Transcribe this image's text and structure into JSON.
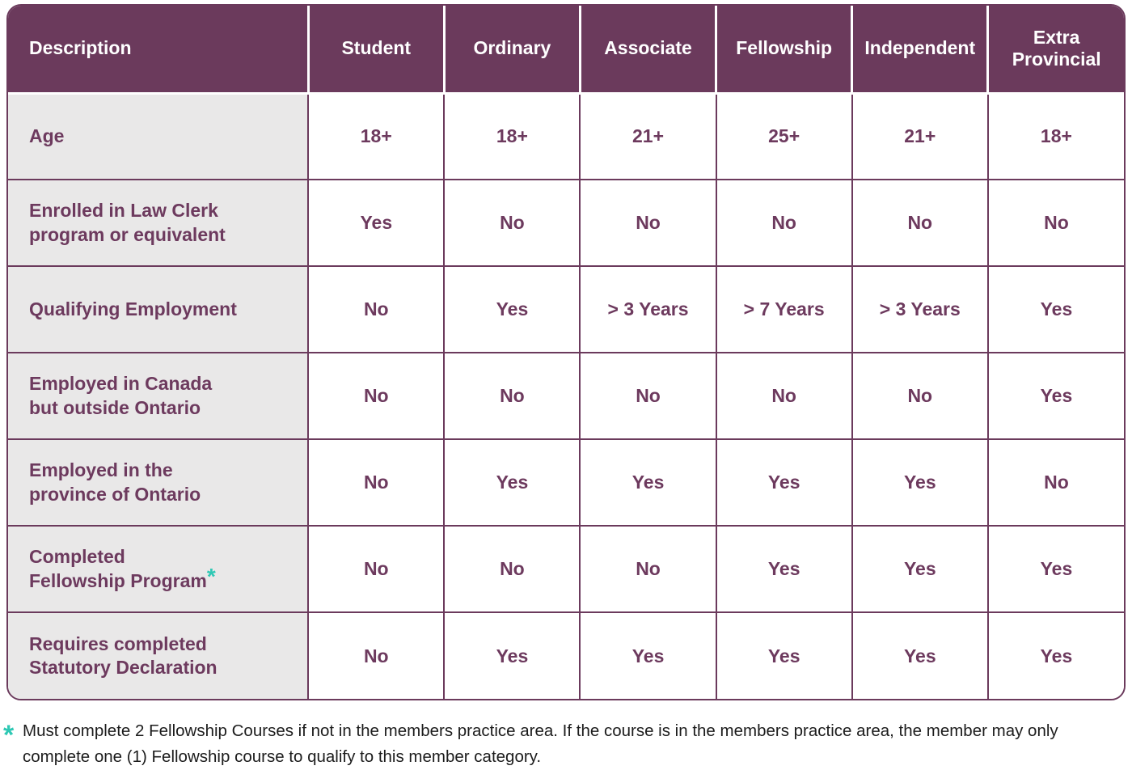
{
  "table": {
    "columns": [
      "Description",
      "Student",
      "Ordinary",
      "Associate",
      "Fellowship",
      "Independent",
      "Extra Provincial"
    ],
    "rows": [
      {
        "label": [
          "Age"
        ],
        "values": [
          "18+",
          "18+",
          "21+",
          "25+",
          "21+",
          "18+"
        ]
      },
      {
        "label": [
          "Enrolled in Law Clerk",
          "program or equivalent"
        ],
        "values": [
          "Yes",
          "No",
          "No",
          "No",
          "No",
          "No"
        ]
      },
      {
        "label": [
          "Qualifying Employment"
        ],
        "values": [
          "No",
          "Yes",
          "> 3 Years",
          "> 7 Years",
          "> 3 Years",
          "Yes"
        ]
      },
      {
        "label": [
          "Employed in Canada",
          "but outside Ontario"
        ],
        "values": [
          "No",
          "No",
          "No",
          "No",
          "No",
          "Yes"
        ]
      },
      {
        "label": [
          "Employed in the",
          "province of Ontario"
        ],
        "values": [
          "No",
          "Yes",
          "Yes",
          "Yes",
          "Yes",
          "No"
        ]
      },
      {
        "label": [
          "Completed",
          "Fellowship Program"
        ],
        "asterisk_marker": "*",
        "values": [
          "No",
          "No",
          "No",
          "Yes",
          "Yes",
          "Yes"
        ]
      },
      {
        "label": [
          "Requires completed",
          "Statutory Declaration"
        ],
        "values": [
          "No",
          "Yes",
          "Yes",
          "Yes",
          "Yes",
          "Yes"
        ]
      }
    ]
  },
  "footnote": {
    "marker": "*",
    "text": "Must complete 2 Fellowship Courses if not in the members practice area. If the course is in the members practice area, the member may only complete one (1) Fellowship course to qualify to this member category."
  },
  "colors": {
    "header_background": "#6B3A5C",
    "cell_text": "#6D3A5E",
    "label_column_background": "#E9E8E8",
    "border": "#6B3A5C",
    "asterisk_teal": "#2EC8B4",
    "footnote_text": "#1C1C1C"
  }
}
